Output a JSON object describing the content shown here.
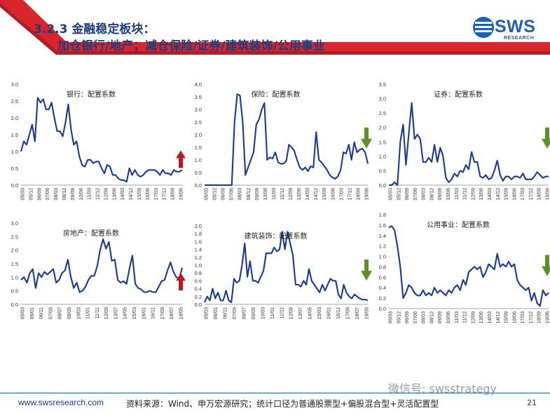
{
  "header": {
    "title_line1": "3.2.3  金融稳定板块：",
    "title_line2": "加仓银行/地产；减仓保险/证券/建筑装饰/公用事业",
    "logo_text": "SWS",
    "logo_sub": "RESEARCH"
  },
  "footer": {
    "url": "www.swsresearch.com",
    "source": "资料来源：Wind、申万宏源研究；统计口径为普通股票型+偏股混合型+灵活配置型",
    "page": "21",
    "watermark": "微信号: swsstrategy"
  },
  "colors": {
    "line": "#1a3a8c",
    "arrow_up": "#c0161f",
    "arrow_down": "#5e8f2a",
    "accent": "#1f5fae",
    "red_band": "#d7262e"
  },
  "chart_data": [
    {
      "type": "line",
      "title": "银行：配置系数",
      "ylim": [
        0,
        3.0
      ],
      "yticks": [
        "0.0",
        "0.5",
        "1.0",
        "1.5",
        "2.0",
        "2.5",
        "3.0"
      ],
      "xticks": [
        "05/03",
        "05/12",
        "06/09",
        "07/06",
        "08/03",
        "08/12",
        "09/09",
        "10/06",
        "11/03",
        "11/12",
        "12/09",
        "13/06",
        "14/03",
        "14/12",
        "15/09",
        "16/06",
        "17/03",
        "17/12",
        "18/09",
        "19/06"
      ],
      "arrow": "up",
      "values": [
        1.0,
        1.3,
        1.2,
        1.5,
        1.8,
        1.3,
        2.6,
        2.45,
        2.55,
        2.25,
        2.25,
        2.45,
        2.0,
        1.6,
        1.6,
        1.45,
        1.85,
        2.4,
        1.65,
        1.2,
        1.3,
        0.85,
        0.6,
        0.55,
        0.75,
        0.75,
        0.65,
        0.7,
        0.7,
        0.5,
        0.35,
        0.6,
        0.55,
        0.3,
        0.3,
        0.2,
        0.15,
        0.15,
        0.1,
        0.5,
        0.3,
        0.45,
        0.3,
        0.25,
        0.3,
        0.4,
        0.45,
        0.45,
        0.45,
        0.4,
        0.3,
        0.45,
        0.35,
        0.35,
        0.3,
        0.45,
        0.4,
        0.4,
        0.45
      ]
    },
    {
      "type": "line",
      "title": "保险：配置系数",
      "ylim": [
        0,
        4.0
      ],
      "yticks": [
        "0.0",
        "0.5",
        "1.0",
        "1.5",
        "2.0",
        "2.5",
        "3.0",
        "3.5",
        "4.0"
      ],
      "xticks": [
        "05/03",
        "05/12",
        "06/09",
        "07/06",
        "08/03",
        "08/12",
        "09/09",
        "10/06",
        "11/03",
        "11/12",
        "12/09",
        "13/06",
        "14/03",
        "14/12",
        "15/09",
        "16/06",
        "17/03",
        "17/12",
        "18/09",
        "19/06"
      ],
      "arrow": "down",
      "values": [
        0.0,
        0.0,
        0.0,
        0.0,
        0.0,
        0.0,
        0.0,
        0.0,
        0.0,
        0.0,
        0.0,
        2.5,
        3.6,
        3.55,
        2.5,
        0.4,
        0.7,
        1.0,
        1.3,
        2.4,
        2.6,
        3.0,
        3.25,
        1.0,
        1.1,
        1.05,
        1.3,
        0.9,
        0.85,
        0.85,
        0.95,
        1.6,
        1.5,
        1.35,
        1.0,
        0.7,
        0.6,
        0.7,
        0.55,
        0.75,
        0.7,
        2.1,
        1.0,
        0.9,
        0.75,
        0.6,
        0.4,
        0.3,
        0.25,
        0.35,
        0.6,
        1.3,
        1.25,
        1.6,
        1.0,
        1.7,
        1.3,
        1.4,
        1.45,
        1.3,
        0.85
      ]
    },
    {
      "type": "line",
      "title": "证券：配置系数",
      "ylim": [
        0,
        3.5
      ],
      "yticks": [
        "0.0",
        "0.5",
        "1.0",
        "1.5",
        "2.0",
        "2.5",
        "3.0",
        "3.5"
      ],
      "xticks": [
        "05/03",
        "05/12",
        "06/09",
        "07/06",
        "08/03",
        "08/12",
        "09/09",
        "10/06",
        "11/03",
        "11/12",
        "12/09",
        "13/06",
        "14/03",
        "14/12",
        "15/09",
        "16/06",
        "17/03",
        "17/12",
        "18/09",
        "19/06"
      ],
      "arrow": "down",
      "values": [
        0.0,
        0.0,
        0.1,
        0.0,
        1.5,
        2.1,
        0.7,
        1.8,
        2.85,
        1.6,
        1.75,
        1.6,
        0.8,
        0.8,
        0.95,
        0.8,
        1.4,
        0.8,
        1.3,
        1.0,
        0.25,
        0.1,
        0.2,
        0.4,
        0.3,
        0.5,
        0.45,
        0.7,
        0.55,
        1.15,
        0.8,
        0.8,
        0.3,
        0.25,
        0.35,
        0.2,
        0.25,
        0.5,
        0.85,
        0.35,
        0.15,
        0.3,
        0.3,
        0.2,
        0.3,
        0.3,
        0.25,
        0.4,
        0.2,
        0.2,
        0.2,
        0.3,
        0.45,
        0.35,
        0.25,
        0.3,
        0.3
      ]
    },
    {
      "type": "line",
      "title": "房地产：配置系数",
      "ylim": [
        0,
        3.0
      ],
      "yticks": [
        "0.0",
        "0.5",
        "1.0",
        "1.5",
        "2.0",
        "2.5",
        "3.0"
      ],
      "xticks": [
        "05/03",
        "06/01",
        "06/11",
        "07/09",
        "08/07",
        "09/05",
        "10/03",
        "11/01",
        "11/11",
        "12/09",
        "13/07",
        "14/05",
        "15/03",
        "16/01",
        "16/11",
        "17/09",
        "18/07",
        "19/05"
      ],
      "arrow": "up",
      "values": [
        0.9,
        1.0,
        0.8,
        1.15,
        1.3,
        0.6,
        1.15,
        1.0,
        1.2,
        1.1,
        1.2,
        1.3,
        0.8,
        0.9,
        1.15,
        1.25,
        1.65,
        1.0,
        0.6,
        0.8,
        0.45,
        0.5,
        0.65,
        0.9,
        1.05,
        1.05,
        1.4,
        2.0,
        2.4,
        2.05,
        2.3,
        1.6,
        1.65,
        0.9,
        0.8,
        0.85,
        0.75,
        1.3,
        1.8,
        0.75,
        0.6,
        0.55,
        0.45,
        0.45,
        0.5,
        0.45,
        0.45,
        0.65,
        0.85,
        0.9,
        1.25,
        1.55,
        1.2,
        1.0,
        0.95,
        1.35
      ]
    },
    {
      "type": "line",
      "title": "建筑装饰：配置系数",
      "ylim": [
        0,
        2.0
      ],
      "yticks": [
        "0.0",
        "0.2",
        "0.4",
        "0.6",
        "0.8",
        "1.0",
        "1.2",
        "1.4",
        "1.6",
        "1.8",
        "2.0"
      ],
      "xticks": [
        "05/03",
        "06/01",
        "06/11",
        "07/09",
        "08/07",
        "09/05",
        "10/03",
        "11/01",
        "11/11",
        "12/09",
        "13/07",
        "14/05",
        "15/03",
        "16/01",
        "16/11",
        "17/09",
        "18/07",
        "19/05"
      ],
      "arrow": "down",
      "values": [
        0.05,
        0.2,
        0.1,
        0.4,
        0.15,
        0.3,
        0.1,
        0.1,
        0.35,
        0.1,
        0.05,
        0.65,
        0.55,
        0.6,
        1.0,
        1.55,
        0.7,
        1.1,
        0.6,
        0.6,
        0.55,
        0.7,
        0.85,
        1.3,
        1.3,
        1.3,
        1.45,
        1.35,
        1.4,
        1.85,
        1.4,
        1.85,
        1.55,
        1.25,
        0.5,
        0.5,
        0.45,
        0.6,
        0.5,
        0.9,
        0.6,
        0.5,
        0.4,
        0.3,
        0.5,
        0.35,
        0.5,
        0.65,
        0.6,
        0.6,
        0.25,
        0.15,
        0.5,
        0.3,
        0.2,
        0.15,
        0.25,
        0.2,
        0.15,
        0.12,
        0.12,
        0.1
      ]
    },
    {
      "type": "line",
      "title": "公用事业：配置系数",
      "ylim": [
        0,
        1.8
      ],
      "yticks": [
        "0.0",
        "0.2",
        "0.4",
        "0.6",
        "0.8",
        "1.0",
        "1.2",
        "1.4",
        "1.6",
        "1.8"
      ],
      "xticks": [
        "05/03",
        "05/12",
        "06/09",
        "07/06",
        "08/03",
        "08/12",
        "09/09",
        "10/06",
        "11/03",
        "11/12",
        "12/09",
        "13/06",
        "14/03",
        "14/12",
        "15/09",
        "16/06",
        "17/03",
        "17/12",
        "18/09",
        "19/06"
      ],
      "arrow": "down",
      "values": [
        1.55,
        1.58,
        1.5,
        1.2,
        0.8,
        0.2,
        0.3,
        0.45,
        0.4,
        0.3,
        0.25,
        0.25,
        0.35,
        0.25,
        0.3,
        0.25,
        0.4,
        0.3,
        0.35,
        0.3,
        0.25,
        0.35,
        0.3,
        0.4,
        0.45,
        0.35,
        0.55,
        0.45,
        0.7,
        0.75,
        0.8,
        0.75,
        0.8,
        0.6,
        0.7,
        0.85,
        0.8,
        0.75,
        1.05,
        0.8,
        0.85,
        0.8,
        0.9,
        0.8,
        0.85,
        0.55,
        0.45,
        0.4,
        0.35,
        0.4,
        0.15,
        0.3,
        0.1,
        0.05,
        0.35,
        0.25,
        0.3
      ]
    }
  ]
}
